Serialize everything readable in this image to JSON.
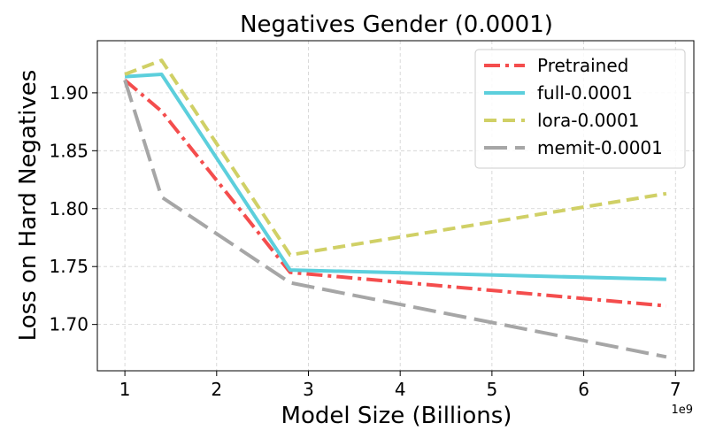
{
  "chart_data": {
    "type": "line",
    "title": "Negatives Gender (0.0001)",
    "xlabel": "Model Size (Billions)",
    "ylabel": "Loss on Hard Negatives",
    "x_offset_label": "1e9",
    "xlim": [
      700000000.0,
      7200000000.0
    ],
    "ylim": [
      1.66,
      1.945
    ],
    "xticks": [
      1000000000.0,
      2000000000.0,
      3000000000.0,
      4000000000.0,
      5000000000.0,
      6000000000.0,
      7000000000.0
    ],
    "xtick_labels": [
      "1",
      "2",
      "3",
      "4",
      "5",
      "6",
      "7"
    ],
    "yticks": [
      1.7,
      1.75,
      1.8,
      1.85,
      1.9
    ],
    "ytick_labels": [
      "1.70",
      "1.75",
      "1.80",
      "1.85",
      "1.90"
    ],
    "grid": true,
    "legend_position": "top-right",
    "x": [
      1000000000.0,
      1400000000.0,
      2800000000.0,
      6900000000.0
    ],
    "series": [
      {
        "name": "Pretrained",
        "values": [
          1.911,
          1.884,
          1.745,
          1.716
        ],
        "color": "#f44d4d",
        "dash": "dashdot"
      },
      {
        "name": "full-0.0001",
        "values": [
          1.914,
          1.916,
          1.747,
          1.739
        ],
        "color": "#5ccfdc",
        "dash": "solid"
      },
      {
        "name": "lora-0.0001",
        "values": [
          1.916,
          1.928,
          1.76,
          1.813
        ],
        "color": "#d0d066",
        "dash": "dashed"
      },
      {
        "name": "memit-0.0001",
        "values": [
          1.911,
          1.81,
          1.736,
          1.672
        ],
        "color": "#a6a6a6",
        "dash": "longdash"
      }
    ]
  }
}
